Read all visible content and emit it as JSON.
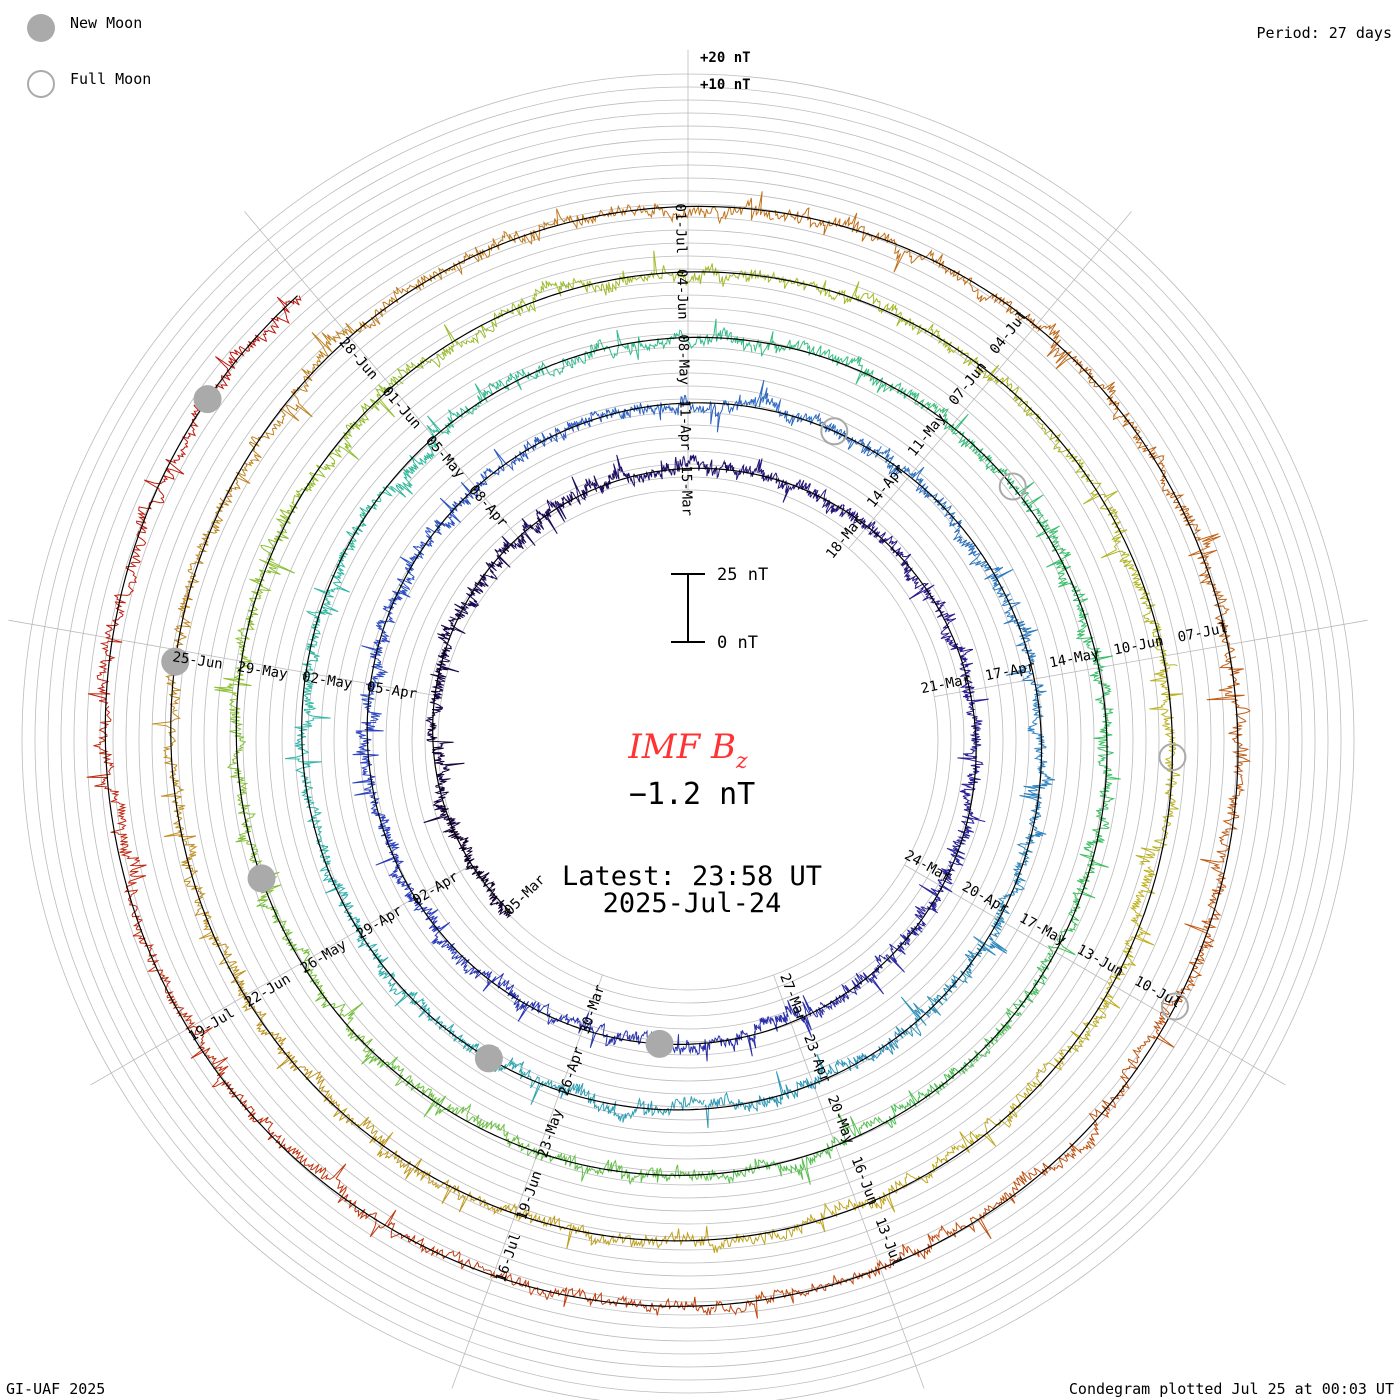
{
  "legend": {
    "new_moon": "New Moon",
    "full_moon": "Full Moon"
  },
  "period_label": "Period: 27 days",
  "footer": {
    "left": "GI-UAF 2025",
    "right": "Condegram plotted Jul 25 at 00:03 UT"
  },
  "scale": {
    "top_label": "+20 nT",
    "second_label": "+10 nT",
    "bar_top": "25 nT",
    "bar_bottom": "0 nT"
  },
  "center": {
    "title_main": "IMF B",
    "title_sub": "z",
    "value": "−1.2 nT",
    "latest": "Latest: 23:58 UT",
    "date": "2025-Jul-24"
  },
  "colors": {
    "center_text": "#ff3333",
    "grid": "#bbbbbb",
    "spiral": "#000000",
    "moon": "#aaaaaa",
    "gradient_stops": [
      "#120030",
      "#2a1a8c",
      "#2a40c0",
      "#2e80c0",
      "#30b8a8",
      "#3cc060",
      "#90c030",
      "#c0b020",
      "#c08020",
      "#c05010",
      "#c01010"
    ]
  },
  "chart_data": {
    "type": "polar-spiral",
    "title": "IMF Bz",
    "period_days": 27,
    "start_date": "2025-03-05",
    "end_date": "2025-07-24",
    "latest_value_nT": -1.2,
    "latest_time": "2025-07-24 23:58 UT",
    "spiral_offset_nT": "+10 nT per turn",
    "date_labels": [
      "28-Jun",
      "01-Jul",
      "04-Jul",
      "07-Jul",
      "10-Jul",
      "13-Jul",
      "16-Jul",
      "19-Jul",
      "22-Jun",
      "25-Jun",
      "01-Jun",
      "04-Jun",
      "07-Jun",
      "10-Jun",
      "13-Jun",
      "16-Jun",
      "19-Jun",
      "26-May",
      "29-May",
      "05-May",
      "08-May",
      "11-May",
      "14-May",
      "17-May",
      "20-May",
      "23-May",
      "02-May",
      "08-Apr",
      "11-Apr",
      "14-Apr",
      "17-Apr",
      "20-Apr",
      "23-Apr",
      "26-Apr",
      "29-Apr",
      "05-Apr",
      "02-Apr",
      "15-Mar",
      "18-Mar",
      "21-Mar",
      "24-Mar",
      "27-Mar",
      "30-Mar",
      "05-Mar"
    ],
    "new_moon_dates": [
      "2025-03-29",
      "2025-04-27",
      "2025-05-27",
      "2025-06-25",
      "2025-07-24"
    ],
    "full_moon_dates": [
      "2025-04-13",
      "2025-05-12",
      "2025-06-11",
      "2025-07-10"
    ]
  }
}
